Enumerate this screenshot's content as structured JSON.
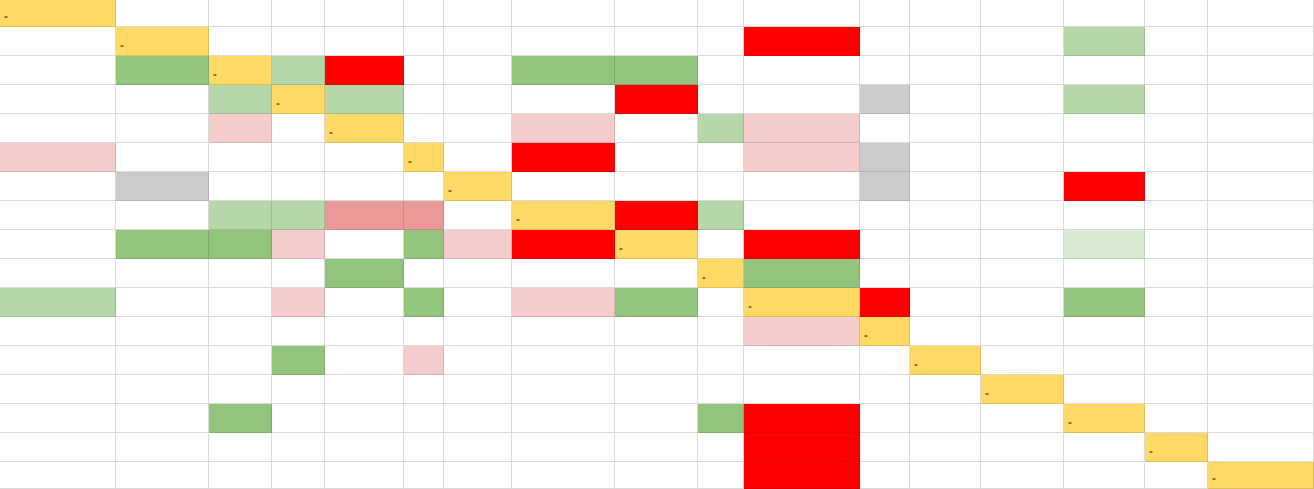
{
  "table": {
    "rows": [
      [
        {
          "fill": "#ffd966",
          "text": "-"
        },
        null,
        null,
        null,
        null,
        null,
        null,
        null,
        null,
        null,
        null,
        null,
        null,
        null,
        null,
        null,
        null
      ],
      [
        null,
        {
          "fill": "#ffd966",
          "text": "-"
        },
        null,
        null,
        null,
        null,
        null,
        null,
        null,
        null,
        {
          "fill": "#ff0000"
        },
        null,
        null,
        null,
        {
          "fill": "#b6d7a8"
        },
        null,
        null
      ],
      [
        null,
        {
          "fill": "#93c47d"
        },
        {
          "fill": "#ffd966",
          "text": "-"
        },
        {
          "fill": "#b6d7a8"
        },
        {
          "fill": "#ff0000"
        },
        null,
        null,
        {
          "fill": "#93c47d"
        },
        {
          "fill": "#93c47d"
        },
        null,
        null,
        null,
        null,
        null,
        null,
        null,
        null
      ],
      [
        null,
        null,
        {
          "fill": "#b6d7a8"
        },
        {
          "fill": "#ffd966",
          "text": "-"
        },
        {
          "fill": "#b6d7a8"
        },
        null,
        null,
        null,
        {
          "fill": "#ff0000"
        },
        null,
        null,
        {
          "fill": "#cccccc"
        },
        null,
        null,
        {
          "fill": "#b6d7a8"
        },
        null,
        null
      ],
      [
        null,
        null,
        {
          "fill": "#f4cccc"
        },
        null,
        {
          "fill": "#ffd966",
          "text": "-"
        },
        null,
        null,
        {
          "fill": "#f4cccc"
        },
        null,
        {
          "fill": "#b6d7a8"
        },
        {
          "fill": "#f4cccc"
        },
        null,
        null,
        null,
        null,
        null,
        null
      ],
      [
        {
          "fill": "#f4cccc"
        },
        null,
        null,
        null,
        null,
        {
          "fill": "#ffd966",
          "text": "-"
        },
        null,
        {
          "fill": "#ff0000"
        },
        null,
        null,
        {
          "fill": "#f4cccc"
        },
        {
          "fill": "#cccccc"
        },
        null,
        null,
        null,
        null,
        null
      ],
      [
        null,
        {
          "fill": "#cccccc"
        },
        null,
        null,
        null,
        null,
        {
          "fill": "#ffd966",
          "text": "-"
        },
        null,
        null,
        null,
        null,
        {
          "fill": "#cccccc"
        },
        null,
        null,
        {
          "fill": "#ff0000"
        },
        null,
        null
      ],
      [
        null,
        null,
        {
          "fill": "#b6d7a8"
        },
        {
          "fill": "#b6d7a8"
        },
        {
          "fill": "#ea9999"
        },
        {
          "fill": "#ea9999"
        },
        null,
        {
          "fill": "#ffd966",
          "text": "-"
        },
        {
          "fill": "#ff0000"
        },
        {
          "fill": "#b6d7a8"
        },
        null,
        null,
        null,
        null,
        null,
        null,
        null
      ],
      [
        null,
        {
          "fill": "#93c47d"
        },
        {
          "fill": "#93c47d"
        },
        {
          "fill": "#f4cccc"
        },
        null,
        {
          "fill": "#93c47d"
        },
        {
          "fill": "#f4cccc"
        },
        {
          "fill": "#ff0000"
        },
        {
          "fill": "#ffd966",
          "text": "-"
        },
        null,
        {
          "fill": "#ff0000"
        },
        null,
        null,
        null,
        {
          "fill": "#d9ead3"
        },
        null,
        null
      ],
      [
        null,
        null,
        null,
        null,
        {
          "fill": "#93c47d"
        },
        null,
        null,
        null,
        null,
        {
          "fill": "#ffd966",
          "text": "-"
        },
        {
          "fill": "#93c47d"
        },
        null,
        null,
        null,
        null,
        null,
        null
      ],
      [
        {
          "fill": "#b6d7a8"
        },
        null,
        null,
        {
          "fill": "#f4cccc"
        },
        null,
        {
          "fill": "#93c47d"
        },
        null,
        {
          "fill": "#f4cccc"
        },
        {
          "fill": "#93c47d"
        },
        null,
        {
          "fill": "#ffd966",
          "text": "-"
        },
        {
          "fill": "#ff0000"
        },
        null,
        null,
        {
          "fill": "#93c47d"
        },
        null,
        null
      ],
      [
        null,
        null,
        null,
        null,
        null,
        null,
        null,
        null,
        null,
        null,
        {
          "fill": "#f4cccc"
        },
        {
          "fill": "#ffd966",
          "text": "-"
        },
        null,
        null,
        null,
        null,
        null
      ],
      [
        null,
        null,
        null,
        {
          "fill": "#93c47d"
        },
        null,
        {
          "fill": "#f4cccc"
        },
        null,
        null,
        null,
        null,
        null,
        null,
        {
          "fill": "#ffd966",
          "text": "-"
        },
        null,
        null,
        null,
        null
      ],
      [
        null,
        null,
        null,
        null,
        null,
        null,
        null,
        null,
        null,
        null,
        null,
        null,
        null,
        {
          "fill": "#ffd966",
          "text": "-"
        },
        null,
        null,
        null
      ],
      [
        null,
        null,
        {
          "fill": "#93c47d"
        },
        null,
        null,
        null,
        null,
        null,
        null,
        {
          "fill": "#93c47d"
        },
        {
          "fill": "#ff0000"
        },
        null,
        null,
        null,
        {
          "fill": "#ffd966",
          "text": "-"
        },
        null,
        null
      ],
      [
        null,
        null,
        null,
        null,
        null,
        null,
        null,
        null,
        null,
        null,
        {
          "fill": "#ff0000"
        },
        null,
        null,
        null,
        null,
        {
          "fill": "#ffd966",
          "text": "-"
        },
        null
      ],
      [
        null,
        null,
        null,
        null,
        null,
        null,
        null,
        null,
        null,
        null,
        {
          "fill": "#ff0000"
        },
        null,
        null,
        null,
        null,
        null,
        {
          "fill": "#ffd966",
          "text": "-"
        }
      ]
    ]
  }
}
